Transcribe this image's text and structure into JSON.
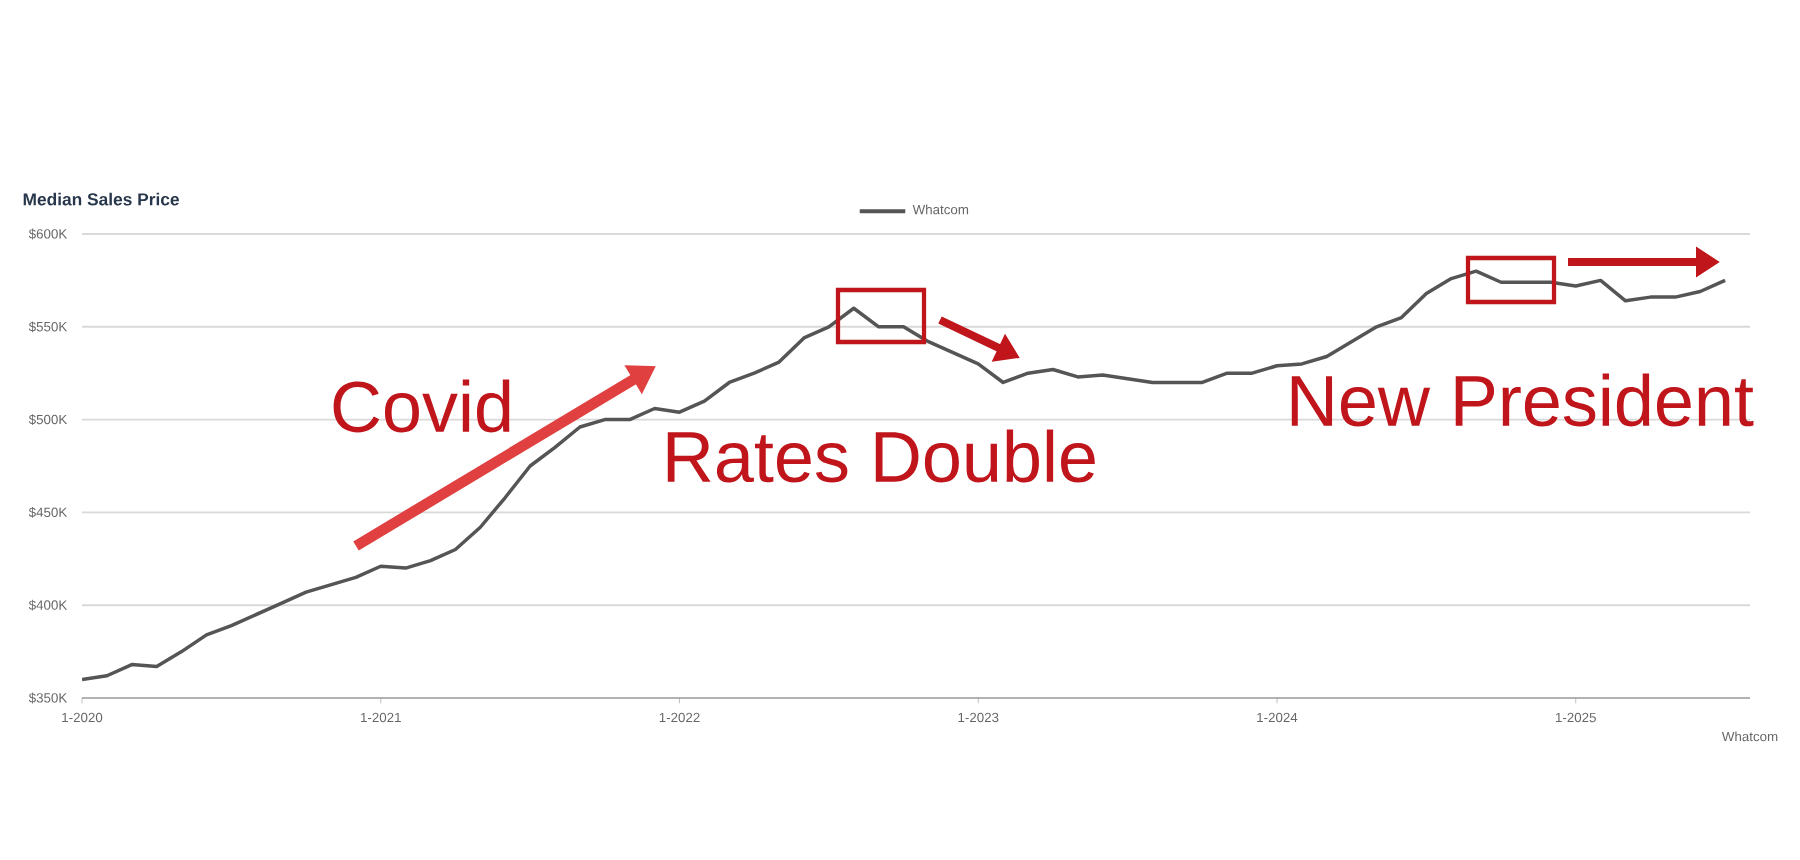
{
  "chart_data": {
    "type": "line",
    "title": "Median Sales Price",
    "xlabel": "Whatcom",
    "x": [
      "2020-01",
      "2020-02",
      "2020-03",
      "2020-04",
      "2020-05",
      "2020-06",
      "2020-07",
      "2020-08",
      "2020-09",
      "2020-10",
      "2020-11",
      "2020-12",
      "2021-01",
      "2021-02",
      "2021-03",
      "2021-04",
      "2021-05",
      "2021-06",
      "2021-07",
      "2021-08",
      "2021-09",
      "2021-10",
      "2021-11",
      "2021-12",
      "2022-01",
      "2022-02",
      "2022-03",
      "2022-04",
      "2022-05",
      "2022-06",
      "2022-07",
      "2022-08",
      "2022-09",
      "2022-10",
      "2022-11",
      "2022-12",
      "2023-01",
      "2023-02",
      "2023-03",
      "2023-04",
      "2023-05",
      "2023-06",
      "2023-07",
      "2023-08",
      "2023-09",
      "2023-10",
      "2023-11",
      "2023-12",
      "2024-01",
      "2024-02",
      "2024-03",
      "2024-04",
      "2024-05",
      "2024-06",
      "2024-07",
      "2024-08",
      "2024-09",
      "2024-10",
      "2024-11",
      "2024-12",
      "2025-01",
      "2025-02",
      "2025-03",
      "2025-04",
      "2025-05",
      "2025-06",
      "2025-07"
    ],
    "series": [
      {
        "name": "Whatcom",
        "color": "#555555",
        "values": [
          360,
          362,
          368,
          367,
          375,
          384,
          389,
          395,
          401,
          407,
          411,
          415,
          421,
          420,
          424,
          430,
          442,
          458,
          475,
          485,
          496,
          500,
          500,
          506,
          504,
          510,
          520,
          525,
          531,
          544,
          550,
          560,
          550,
          550,
          542,
          536,
          530,
          520,
          525,
          527,
          523,
          524,
          522,
          520,
          520,
          520,
          525,
          525,
          529,
          530,
          534,
          542,
          550,
          555,
          568,
          576,
          580,
          574,
          574,
          574,
          572,
          575,
          564,
          566,
          566,
          569,
          575
        ]
      }
    ],
    "xlim": [
      "2020-01",
      "2025-08"
    ],
    "xticks": [
      {
        "value": "2020-01",
        "label": "1-2020"
      },
      {
        "value": "2021-01",
        "label": "1-2021"
      },
      {
        "value": "2022-01",
        "label": "1-2022"
      },
      {
        "value": "2023-01",
        "label": "1-2023"
      },
      {
        "value": "2024-01",
        "label": "1-2024"
      },
      {
        "value": "2025-01",
        "label": "1-2025"
      }
    ],
    "ylim": [
      350,
      600
    ],
    "yticks": [
      {
        "value": 350,
        "label": "$350K"
      },
      {
        "value": 400,
        "label": "$400K"
      },
      {
        "value": 450,
        "label": "$450K"
      },
      {
        "value": 500,
        "label": "$500K"
      },
      {
        "value": 550,
        "label": "$550K"
      },
      {
        "value": 600,
        "label": "$600K"
      }
    ],
    "grid": "y",
    "legend": "top",
    "marker": "none",
    "line_style": "solid",
    "annotations": [
      "Covid",
      "Rates Double",
      "New President"
    ]
  }
}
